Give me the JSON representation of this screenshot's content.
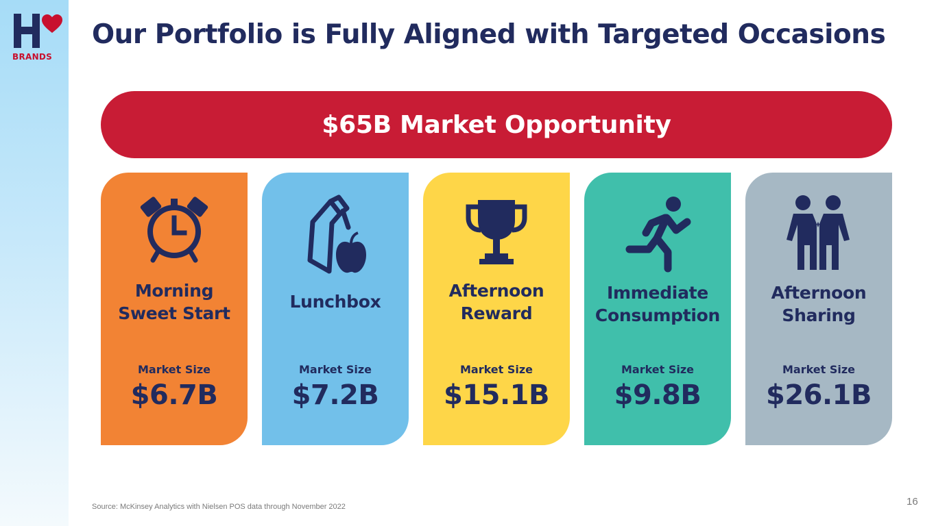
{
  "brand": {
    "logo_text": "BRANDS",
    "accent": "#c8102e",
    "navy": "#212b5e"
  },
  "title": "Our Portfolio is Fully Aligned with Targeted Occasions",
  "banner": {
    "text": "$65B Market Opportunity",
    "color": "#c81c35"
  },
  "cards": [
    {
      "label": "Morning\nSweet Start",
      "market_size_label": "Market Size",
      "value": "$6.7B",
      "color": "#f28334",
      "icon": "alarm-clock-icon"
    },
    {
      "label": "Lunchbox",
      "market_size_label": "Market Size",
      "value": "$7.2B",
      "color": "#72c0ea",
      "icon": "lunchbox-apple-icon"
    },
    {
      "label": "Afternoon\nReward",
      "market_size_label": "Market Size",
      "value": "$15.1B",
      "color": "#fed648",
      "icon": "trophy-icon"
    },
    {
      "label": "Immediate\nConsumption",
      "market_size_label": "Market Size",
      "value": "$9.8B",
      "color": "#40bfab",
      "icon": "running-person-icon"
    },
    {
      "label": "Afternoon\nSharing",
      "market_size_label": "Market Size",
      "value": "$26.1B",
      "color": "#a6b8c4",
      "icon": "two-people-icon"
    }
  ],
  "footer": {
    "source": "Source: McKinsey Analytics with Nielsen POS data through November 2022",
    "page_number": "16"
  }
}
